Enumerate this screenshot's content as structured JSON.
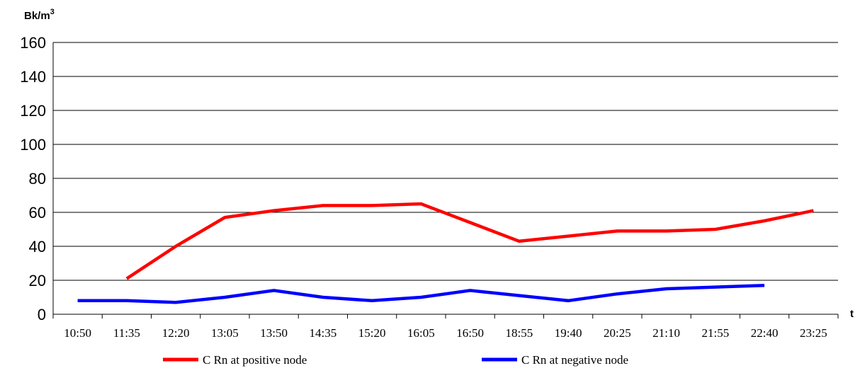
{
  "chart_data": {
    "type": "line",
    "ylabel": "Bk/m",
    "ylabel_sup": "3",
    "xlabel": "t",
    "ylim": [
      0,
      160
    ],
    "yticks": [
      0,
      20,
      40,
      60,
      80,
      100,
      120,
      140,
      160
    ],
    "grid": true,
    "legend_position": "bottom",
    "categories": [
      "10:50",
      "11:35",
      "12:20",
      "13:05",
      "13:50",
      "14:35",
      "15:20",
      "16:05",
      "16:50",
      "18:55",
      "19:40",
      "20:25",
      "21:10",
      "21:55",
      "22:40",
      "23:25"
    ],
    "series": [
      {
        "name": "C Rn at positive node",
        "color": "#ff0000",
        "values": [
          null,
          21,
          40,
          57,
          61,
          64,
          64,
          65,
          54,
          43,
          46,
          49,
          49,
          50,
          55,
          61
        ]
      },
      {
        "name": "C Rn at negative node",
        "color": "#0000ff",
        "values": [
          8,
          8,
          7,
          10,
          14,
          10,
          8,
          10,
          14,
          11,
          8,
          12,
          15,
          16,
          17,
          null
        ]
      }
    ]
  }
}
